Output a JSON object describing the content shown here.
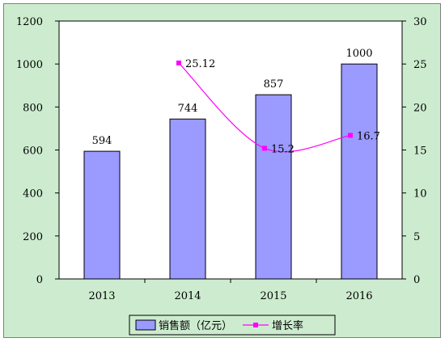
{
  "chart_data": {
    "type": "bar",
    "categories": [
      "2013",
      "2014",
      "2015",
      "2016"
    ],
    "series": [
      {
        "name": "销售额（亿元）",
        "type": "bar",
        "axis": "left",
        "values": [
          594,
          744,
          857,
          1000
        ],
        "labels": [
          "594",
          "744",
          "857",
          "1000"
        ]
      },
      {
        "name": "增长率",
        "type": "line",
        "axis": "right",
        "values": [
          null,
          25.12,
          15.2,
          16.7
        ],
        "labels": [
          "",
          "25.12",
          "15.2",
          "16.7"
        ]
      }
    ],
    "y_left": {
      "min": 0,
      "max": 1200,
      "ticks": [
        "0",
        "200",
        "400",
        "600",
        "800",
        "1000",
        "1200"
      ]
    },
    "y_right": {
      "min": 0,
      "max": 30,
      "ticks": [
        "0",
        "5",
        "10",
        "15",
        "20",
        "25",
        "30"
      ]
    },
    "grid": false,
    "legend_position": "bottom",
    "colors": {
      "plot_background": "#ffffff",
      "chart_background": "#cdeccf",
      "bar_fill": "#9a9aff",
      "bar_stroke": "#000000",
      "line": "#ff00ff"
    }
  }
}
